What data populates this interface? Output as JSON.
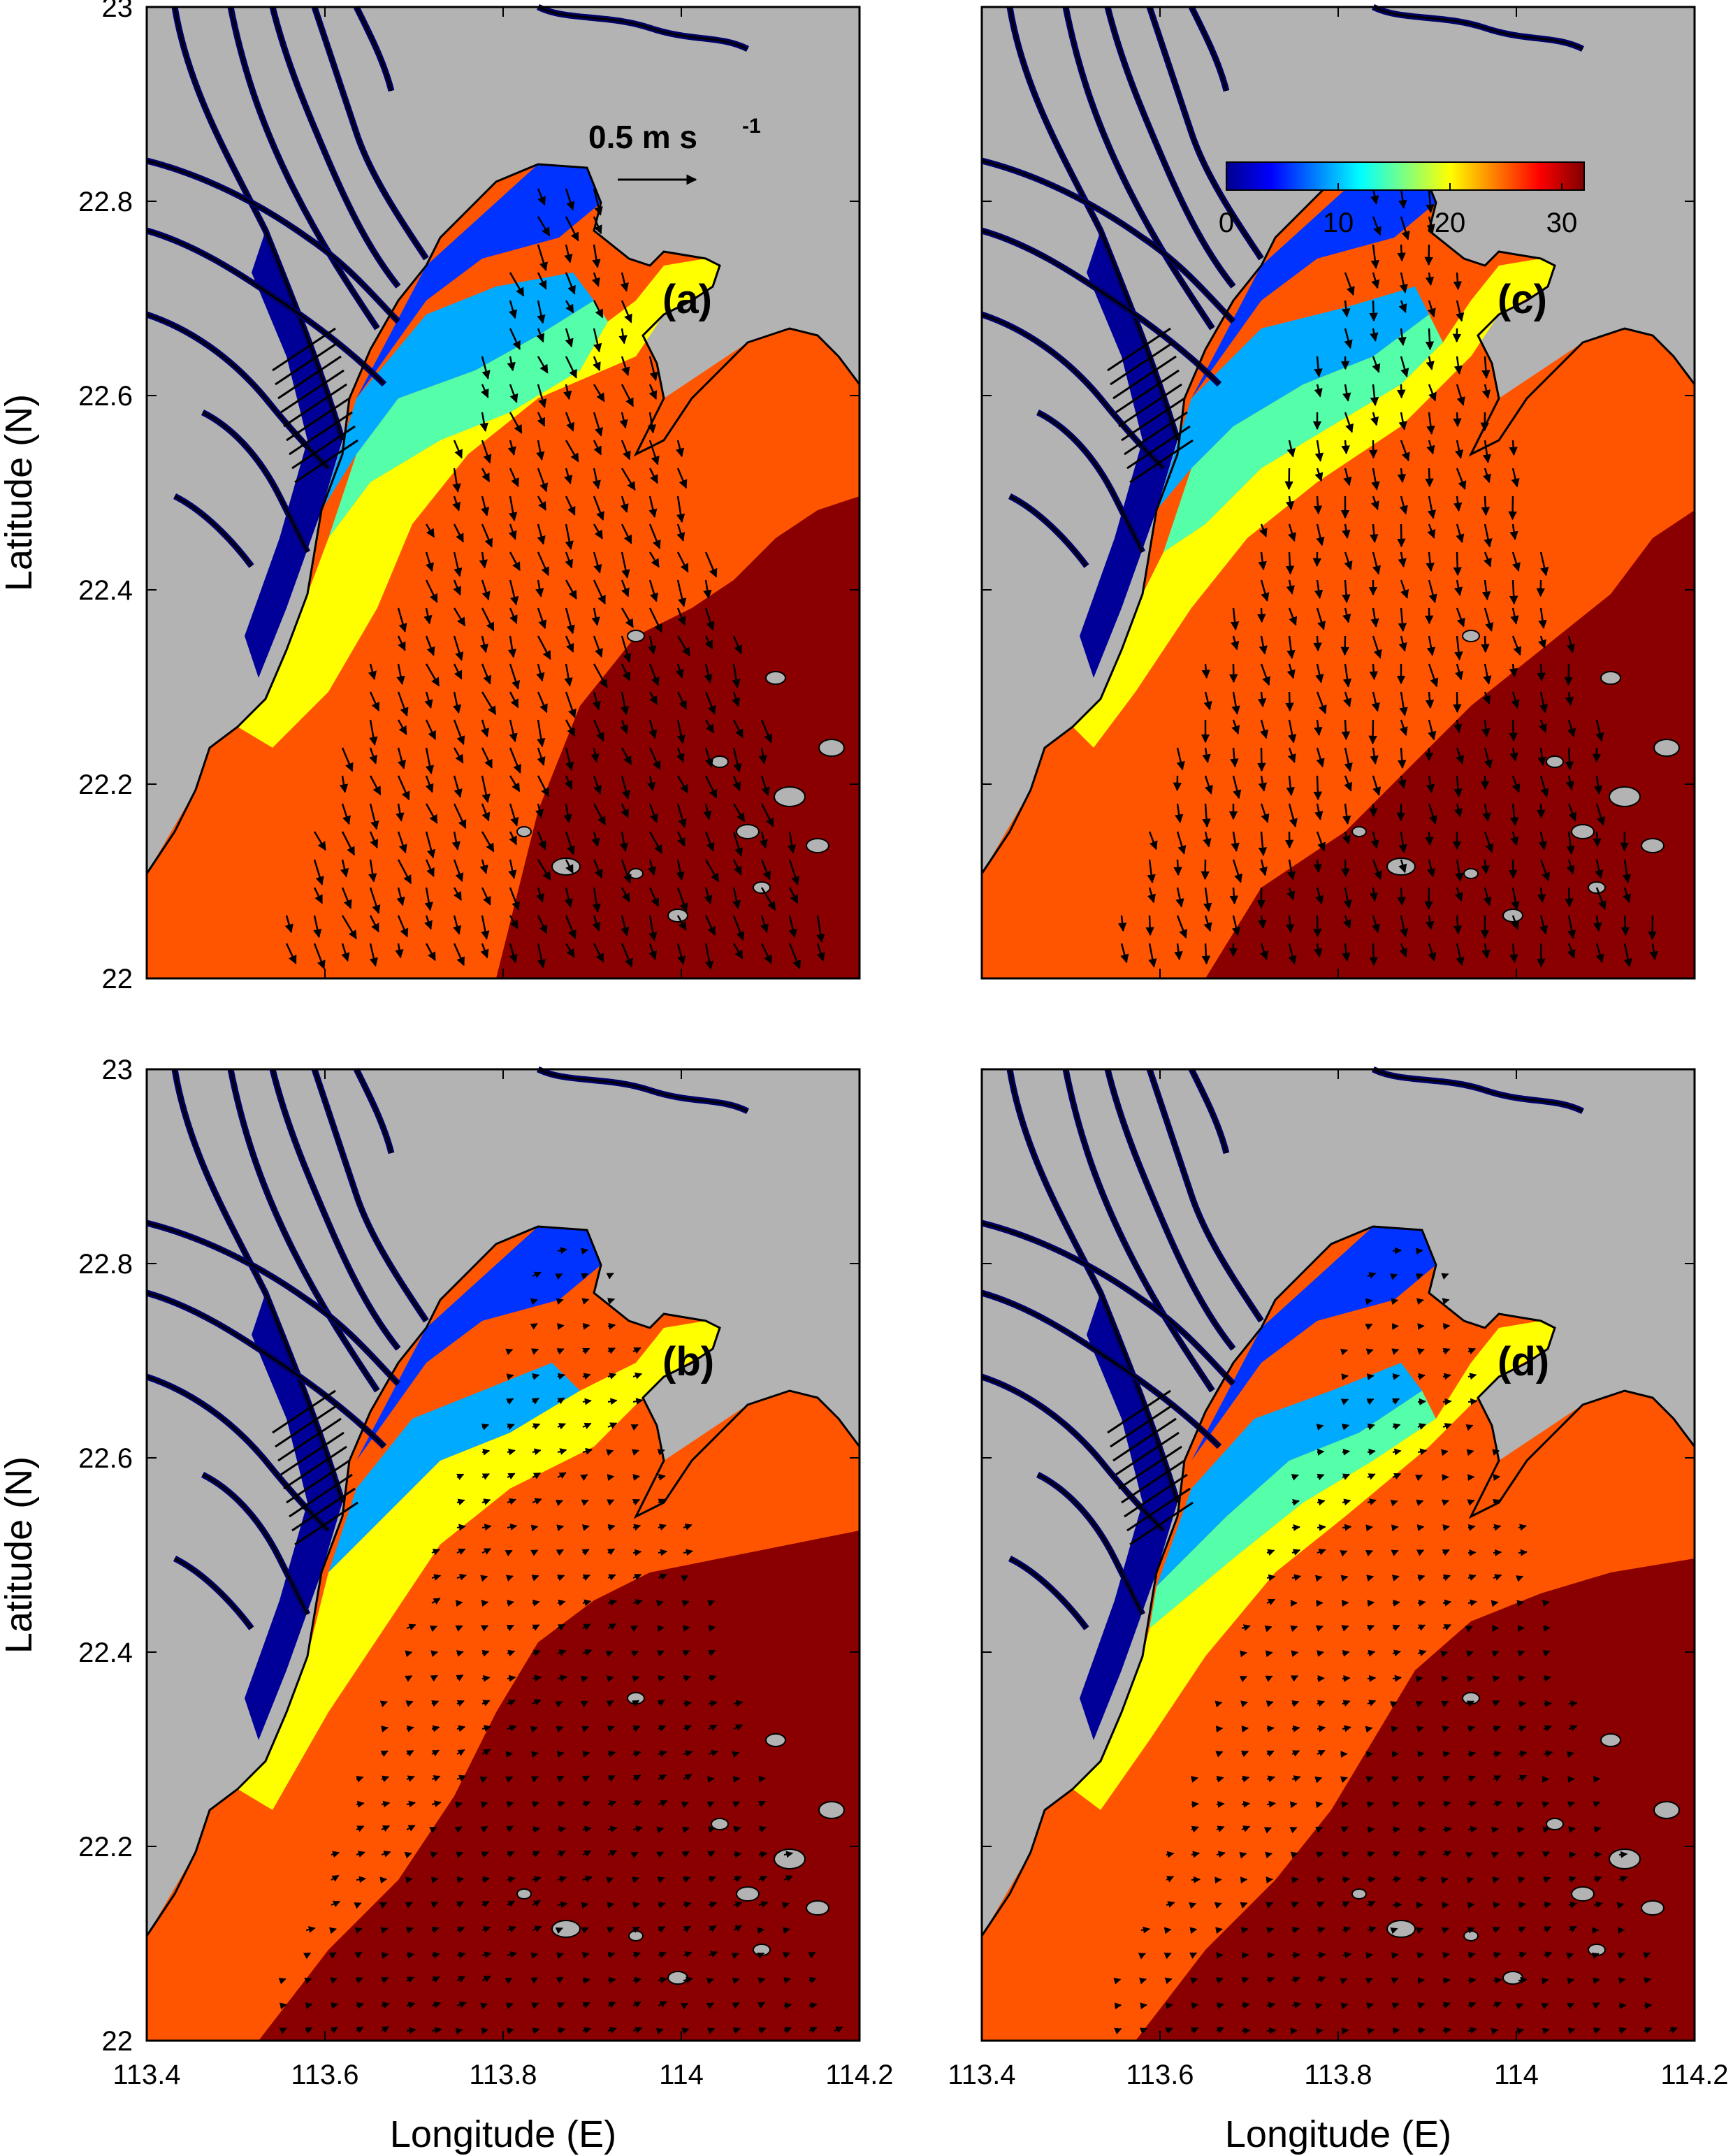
{
  "figure": {
    "x_axis_label": "Longitude (E)",
    "y_axis_label": "Latitude (N)",
    "x_ticks": [
      "113.4",
      "113.6",
      "113.8",
      "114",
      "114.2"
    ],
    "y_ticks": [
      "22",
      "22.2",
      "22.4",
      "22.6",
      "22.8",
      "23"
    ],
    "x_range": [
      113.4,
      114.2
    ],
    "y_range": [
      22.0,
      23.0
    ],
    "velocity_scale_label": "0.5 m s",
    "velocity_scale_exponent": "-1",
    "colorbar": {
      "ticks": [
        "0",
        "10",
        "20",
        "30"
      ],
      "range": [
        0,
        32
      ],
      "colormap": "jet"
    },
    "land_color": "#b3b3b3",
    "panels": [
      {
        "id": "a",
        "label": "(a)"
      },
      {
        "id": "b",
        "label": "(b)"
      },
      {
        "id": "c",
        "label": "(c)"
      },
      {
        "id": "d",
        "label": "(d)"
      }
    ]
  }
}
